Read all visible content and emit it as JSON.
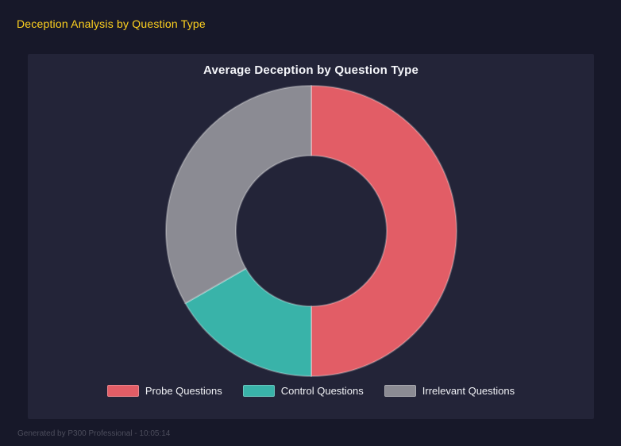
{
  "page": {
    "title": "Deception Analysis by Question Type",
    "footer": "Generated by P300 Professional - 10:05:14"
  },
  "chart_data": {
    "type": "pie",
    "variant": "donut",
    "title": "Average Deception by Question Type",
    "categories": [
      "Probe Questions",
      "Control Questions",
      "Irrelevant Questions"
    ],
    "values": [
      50,
      16.7,
      33.3
    ],
    "colors": [
      "#e25d66",
      "#39b3a9",
      "#8b8b93"
    ],
    "legend_position": "bottom",
    "donut_hole_ratio": 0.52,
    "start_angle_deg": 0,
    "direction": "clockwise"
  },
  "colors": {
    "page_background": "#171829",
    "panel_background": "#232438",
    "accent_yellow": "#ffd21f",
    "title_text": "#f5f6fa",
    "legend_text": "#f0f1f5",
    "footer_text": "#4c4d5c"
  }
}
